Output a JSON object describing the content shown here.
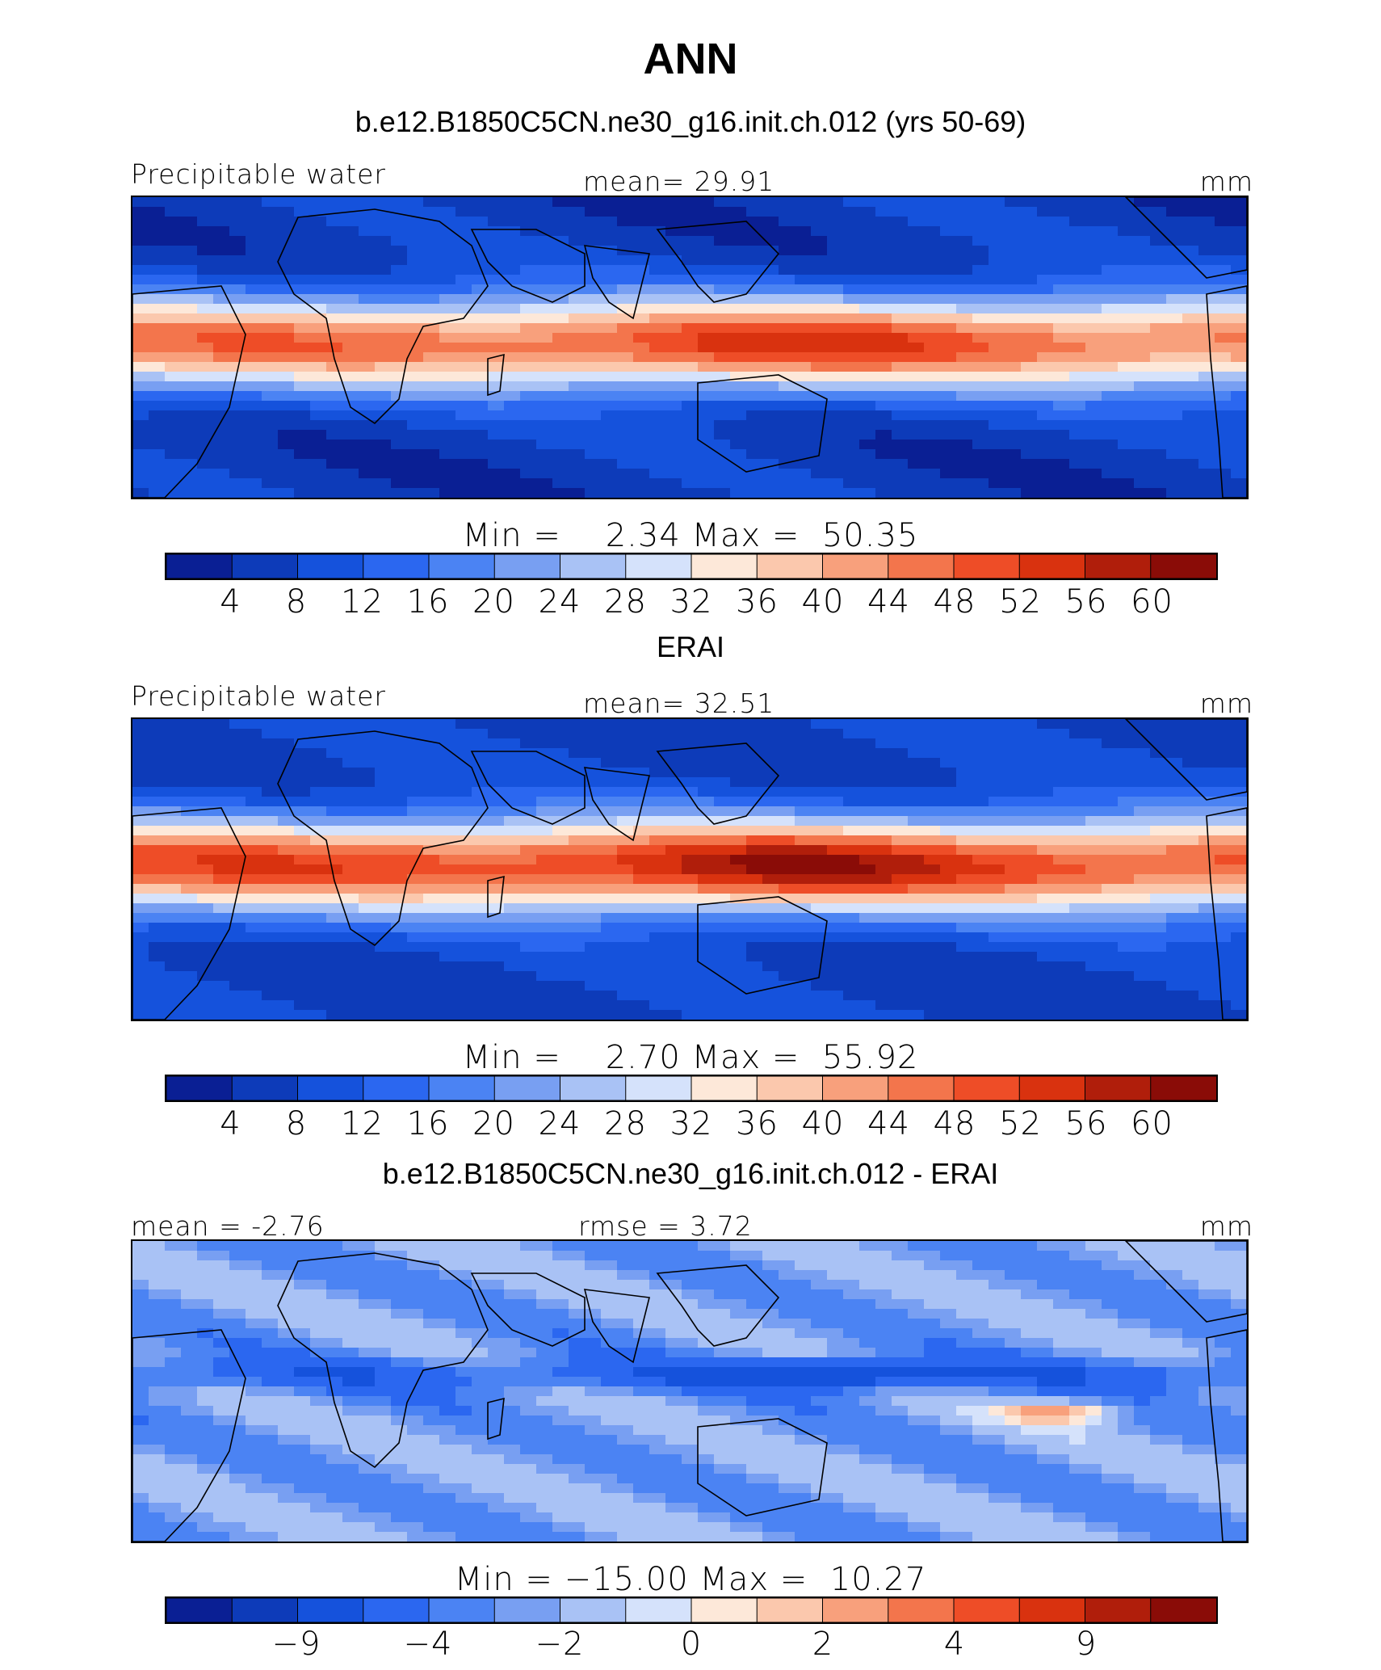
{
  "figure": {
    "title": "ANN"
  },
  "colors": {
    "scale": [
      "#0a1f94",
      "#0d3bb9",
      "#1552dc",
      "#2b67f0",
      "#4b83f3",
      "#789ff2",
      "#a9c2f5",
      "#d5e2fb",
      "#fde8d9",
      "#fbc8ad",
      "#f8a07c",
      "#f3754c",
      "#ee4d27",
      "#d9320f",
      "#b01e0b",
      "#8a0c07"
    ]
  },
  "chart_data": [
    {
      "type": "heatmap",
      "title": "b.e12.B1850C5CN.ne30_g16.init.ch.012 (yrs 50-69)",
      "left_label": "Precipitable water",
      "center_label": "mean=   29.91",
      "units": "mm",
      "stat": {
        "min_label": "Min",
        "min": "2.34",
        "max_label": "Max",
        "max": "50.35"
      },
      "colorbar_ticks": [
        "4",
        "8",
        "12",
        "16",
        "20",
        "24",
        "28",
        "32",
        "36",
        "40",
        "44",
        "48",
        "52",
        "56",
        "60"
      ],
      "field": {
        "eq_value": 46,
        "pole_value": 6,
        "warm_pool_boost": 8,
        "land_dry": 8
      }
    },
    {
      "type": "heatmap",
      "title": "ERAI",
      "left_label": "Precipitable water",
      "center_label": "mean=   32.51",
      "units": "mm",
      "stat": {
        "min_label": "Min",
        "min": "2.70",
        "max_label": "Max",
        "max": "55.92"
      },
      "colorbar_ticks": [
        "4",
        "8",
        "12",
        "16",
        "20",
        "24",
        "28",
        "32",
        "36",
        "40",
        "44",
        "48",
        "52",
        "56",
        "60"
      ],
      "field": {
        "eq_value": 50,
        "pole_value": 7,
        "warm_pool_boost": 10,
        "land_dry": 6
      }
    },
    {
      "type": "heatmap",
      "title": "b.e12.B1850C5CN.ne30_g16.init.ch.012 - ERAI",
      "left_label": "mean =  -2.76",
      "center_label": "rmse =    3.72",
      "units": "mm",
      "stat": {
        "min_label": "Min",
        "min": "−15.00",
        "max_label": "Max",
        "max": "10.27"
      },
      "colorbar_ticks": [
        "−9",
        "−4",
        "−2",
        "0",
        "2",
        "4",
        "9"
      ]
    }
  ]
}
